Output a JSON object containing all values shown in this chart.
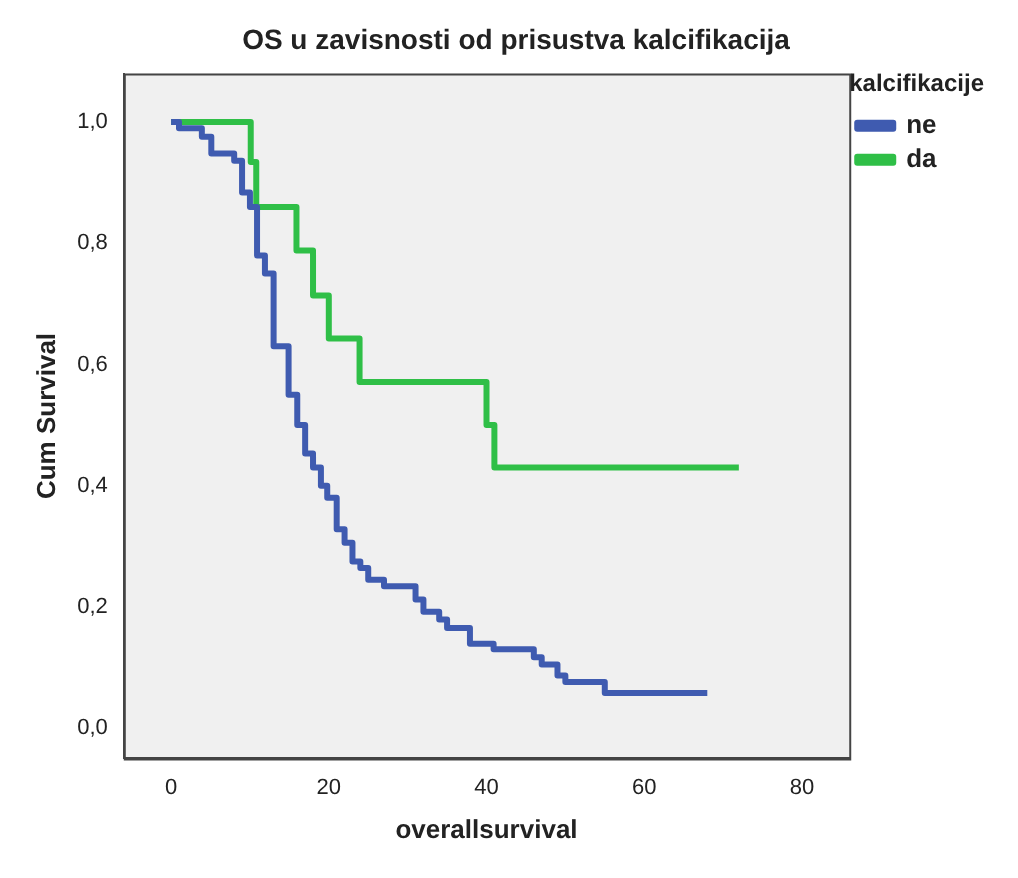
{
  "chart_data": {
    "type": "step",
    "title": "OS u zavisnosti od prisustva kalcifikacija",
    "xlabel": "overallsurvival",
    "ylabel": "Cum Survival",
    "legend_title": "kalcifikacije",
    "legend": "top right",
    "grid": false,
    "marker": "none",
    "xlim": [
      -6,
      86
    ],
    "xticks": [
      0,
      20,
      40,
      60,
      80
    ],
    "ylim": [
      -0.05,
      1.08
    ],
    "yticks": [
      {
        "value": 0,
        "label": "0,0"
      },
      {
        "value": 0.2,
        "label": "0,2"
      },
      {
        "value": 0.4,
        "label": "0,4"
      },
      {
        "value": 0.6,
        "label": "0,6"
      },
      {
        "value": 0.8,
        "label": "0,8"
      },
      {
        "value": 1,
        "label": "1,0"
      }
    ],
    "series": [
      {
        "name": "ne",
        "color": "#3f5bb0",
        "x": [
          0,
          1,
          3.9,
          5.1,
          8,
          9,
          10,
          10.9,
          11.9,
          13,
          14.9,
          16,
          17,
          18,
          19,
          19.8,
          21,
          22,
          23,
          24,
          25,
          27,
          31,
          32,
          34,
          35,
          37.9,
          40.9,
          46,
          47,
          49,
          50,
          55,
          68
        ],
        "values": [
          1,
          0.99,
          0.976,
          0.948,
          0.936,
          0.884,
          0.86,
          0.78,
          0.75,
          0.63,
          0.55,
          0.5,
          0.453,
          0.43,
          0.4,
          0.38,
          0.328,
          0.306,
          0.275,
          0.264,
          0.245,
          0.234,
          0.212,
          0.192,
          0.179,
          0.165,
          0.139,
          0.13,
          0.117,
          0.105,
          0.087,
          0.076,
          0.058,
          0.058
        ]
      },
      {
        "name": "da",
        "color": "#2fbf47",
        "x": [
          0,
          10.1,
          10.8,
          15.9,
          18,
          20,
          23.9,
          40,
          41,
          72
        ],
        "values": [
          1,
          0.934,
          0.86,
          0.788,
          0.714,
          0.643,
          0.571,
          0.5,
          0.43,
          0.43
        ]
      }
    ]
  }
}
